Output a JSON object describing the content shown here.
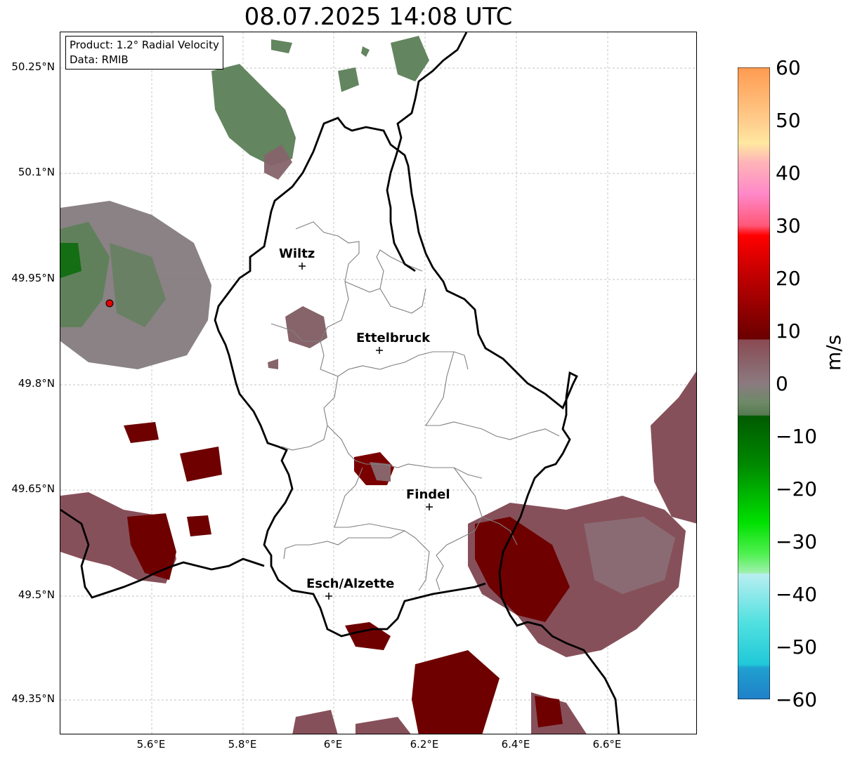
{
  "title": "08.07.2025 14:08 UTC",
  "info": {
    "product": "Product: 1.2° Radial Velocity",
    "source": "Data: RMIB"
  },
  "axes": {
    "lat_labels": [
      "50.25°N",
      "50.1°N",
      "49.95°N",
      "49.8°N",
      "49.65°N",
      "49.5°N",
      "49.35°N"
    ],
    "lon_labels": [
      "5.6°E",
      "5.8°E",
      "6°E",
      "6.2°E",
      "6.4°E",
      "6.6°E"
    ]
  },
  "cities": {
    "wiltz": "Wiltz",
    "ettelbruck": "Ettelbruck",
    "findel": "Findel",
    "esch": "Esch/Alzette"
  },
  "colorbar": {
    "unit": "m/s",
    "ticks": [
      "60",
      "50",
      "40",
      "30",
      "20",
      "10",
      "0",
      "−10",
      "−20",
      "−30",
      "−40",
      "−50",
      "−60"
    ],
    "range": [
      -60,
      60
    ]
  },
  "colors": {
    "border": "#000000",
    "districts": "#808080",
    "radar_marker": "#e00000",
    "inbound_grey_green": "#5b7f57",
    "outbound_mauve": "#8a5a62",
    "outbound_dark_red": "#6e0000"
  }
}
